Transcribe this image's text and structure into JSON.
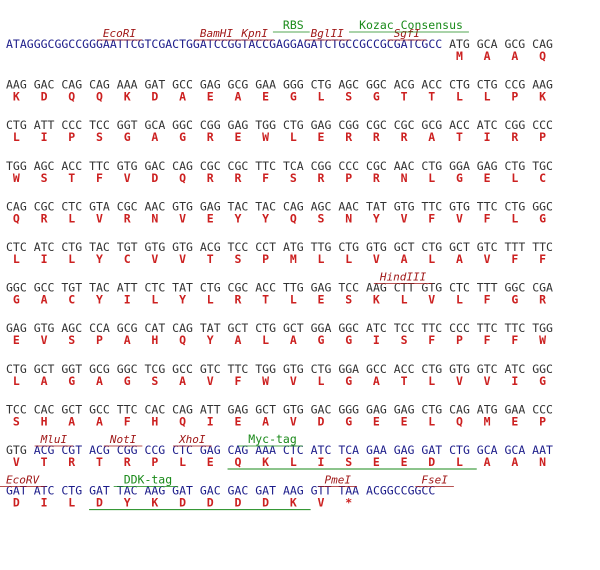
{
  "lines": [
    {
      "dna": [
        {
          "text": "ATAGGGCGGCCGGGAATTCGTCGACTGGATCCGGTACCGAGGAGATCTGCCGCCGCGATCGCC",
          "color": "#1c1c8a"
        },
        {
          "text": " ATG GCA GCG CAG",
          "color": "#333333"
        }
      ],
      "protein": [
        "M",
        "A",
        "A",
        "Q"
      ],
      "annotations": [
        {
          "label": "EcoRI",
          "color": "#a01818"
        },
        {
          "label": "BamHI",
          "color": "#a01818"
        },
        {
          "label": "KpnI",
          "color": "#a01818"
        },
        {
          "label": "BglII",
          "color": "#a01818"
        },
        {
          "label": "SgfI",
          "color": "#a01818"
        },
        {
          "label": "RBS",
          "color": "#1a8a1a"
        },
        {
          "label": "Kozac Consensus",
          "color": "#1a8a1a"
        }
      ]
    },
    {
      "dna": [
        {
          "text": "AAG GAC CAG CAG AAA GAT GCC GAG GCG GAA GGG CTG AGC GGC ACG ACC CTG CTG CCG AAG",
          "color": "#333333"
        }
      ],
      "protein": [
        "K",
        "D",
        "Q",
        "Q",
        "K",
        "D",
        "A",
        "E",
        "A",
        "E",
        "G",
        "L",
        "S",
        "G",
        "T",
        "T",
        "L",
        "L",
        "P",
        "K"
      ],
      "annotations": []
    },
    {
      "dna": [
        {
          "text": "CTG ATT CCC TCC GGT GCA GGC CGG GAG TGG CTG GAG CGG CGC CGC GCG ACC ATC CGG CCC",
          "color": "#333333"
        }
      ],
      "protein": [
        "L",
        "I",
        "P",
        "S",
        "G",
        "A",
        "G",
        "R",
        "E",
        "W",
        "L",
        "E",
        "R",
        "R",
        "R",
        "A",
        "T",
        "I",
        "R",
        "P"
      ],
      "annotations": []
    },
    {
      "dna": [
        {
          "text": "TGG AGC ACC TTC GTG GAC CAG CGC CGC TTC TCA CGG CCC CGC AAC CTG GGA GAG CTG TGC",
          "color": "#333333"
        }
      ],
      "protein": [
        "W",
        "S",
        "T",
        "F",
        "V",
        "D",
        "Q",
        "R",
        "R",
        "F",
        "S",
        "R",
        "P",
        "R",
        "N",
        "L",
        "G",
        "E",
        "L",
        "C"
      ],
      "annotations": []
    },
    {
      "dna": [
        {
          "text": "CAG CGC CTC GTA CGC AAC GTG GAG TAC TAC CAG AGC AAC TAT GTG TTC GTG TTC CTG GGC",
          "color": "#333333"
        }
      ],
      "protein": [
        "Q",
        "R",
        "L",
        "V",
        "R",
        "N",
        "V",
        "E",
        "Y",
        "Y",
        "Q",
        "S",
        "N",
        "Y",
        "V",
        "F",
        "V",
        "F",
        "L",
        "G"
      ],
      "annotations": []
    },
    {
      "dna": [
        {
          "text": "CTC ATC CTG TAC TGT GTG GTG ACG TCC CCT ATG TTG CTG GTG GCT CTG GCT GTC TTT TTC",
          "color": "#333333"
        }
      ],
      "protein": [
        "L",
        "I",
        "L",
        "Y",
        "C",
        "V",
        "V",
        "T",
        "S",
        "P",
        "M",
        "L",
        "L",
        "V",
        "A",
        "L",
        "A",
        "V",
        "F",
        "F"
      ],
      "annotations": []
    },
    {
      "dna": [
        {
          "text": "GGC GCC TGT TAC ATT CTC TAT CTG CGC ACC TTG GAG TCC AAG CTT GTG CTC TTT GGC CGA",
          "color": "#333333"
        }
      ],
      "protein": [
        "G",
        "A",
        "C",
        "Y",
        "I",
        "L",
        "Y",
        "L",
        "R",
        "T",
        "L",
        "E",
        "S",
        "K",
        "L",
        "V",
        "L",
        "F",
        "G",
        "R"
      ],
      "annotations": [
        {
          "label": "HindIII",
          "color": "#a01818"
        }
      ]
    },
    {
      "dna": [
        {
          "text": "GAG GTG AGC CCA GCG CAT CAG TAT GCT CTG GCT GGA GGC ATC TCC TTC CCC TTC TTC TGG",
          "color": "#333333"
        }
      ],
      "protein": [
        "E",
        "V",
        "S",
        "P",
        "A",
        "H",
        "Q",
        "Y",
        "A",
        "L",
        "A",
        "G",
        "G",
        "I",
        "S",
        "F",
        "P",
        "F",
        "F",
        "W"
      ],
      "annotations": []
    },
    {
      "dna": [
        {
          "text": "CTG GCT GGT GCG GGC TCG GCC GTC TTC TGG GTG CTG GGA GCC ACC CTG GTG GTC ATC GGC",
          "color": "#333333"
        }
      ],
      "protein": [
        "L",
        "A",
        "G",
        "A",
        "G",
        "S",
        "A",
        "V",
        "F",
        "W",
        "V",
        "L",
        "G",
        "A",
        "T",
        "L",
        "V",
        "V",
        "I",
        "G"
      ],
      "annotations": []
    },
    {
      "dna": [
        {
          "text": "TCC CAC GCT GCC TTC CAC CAG ATT GAG GCT GTG GAC GGG GAG GAG CTG CAG ATG GAA CCC",
          "color": "#333333"
        }
      ],
      "protein": [
        "S",
        "H",
        "A",
        "A",
        "F",
        "H",
        "Q",
        "I",
        "E",
        "A",
        "V",
        "D",
        "G",
        "E",
        "E",
        "L",
        "Q",
        "M",
        "E",
        "P"
      ],
      "annotations": []
    },
    {
      "dna": [
        {
          "text": "GTG ",
          "color": "#333333"
        },
        {
          "text": "ACG CGT ACG CGG CCG CTC GAG CAG AAA CTC ATC TCA GAA GAG GAT CTG GCA GCA AAT",
          "color": "#1c1c8a"
        }
      ],
      "protein": [
        "V",
        "T",
        "R",
        "T",
        "R",
        "P",
        "L",
        "E",
        "Q",
        "K",
        "L",
        "I",
        "S",
        "E",
        "E",
        "D",
        "L",
        "A",
        "A",
        "N"
      ],
      "annotations": [
        {
          "label": "MluI",
          "color": "#a01818"
        },
        {
          "label": "NotI",
          "color": "#a01818"
        },
        {
          "label": "XhoI",
          "color": "#a01818"
        },
        {
          "label": "Myc-tag",
          "color": "#1a8a1a"
        }
      ]
    },
    {
      "dna": [
        {
          "text": "GAT ATC CTG GAT TAC AAG GAT GAC GAC GAT AAG GTT TAA ACGGCCGGCC",
          "color": "#1c1c8a"
        }
      ],
      "protein": [
        "D",
        "I",
        "L",
        "D",
        "Y",
        "K",
        "D",
        "D",
        "D",
        "D",
        "K",
        "V",
        "*"
      ],
      "annotations": [
        {
          "label": "EcoRV",
          "color": "#a01818"
        },
        {
          "label": "DDK-tag",
          "color": "#1a8a1a"
        },
        {
          "label": "PmeI",
          "color": "#a01818"
        },
        {
          "label": "FseI",
          "color": "#a01818"
        }
      ]
    }
  ]
}
